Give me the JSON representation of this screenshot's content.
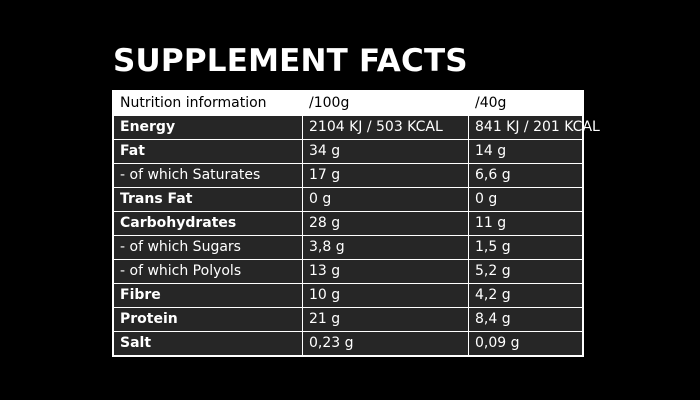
{
  "title": "SUPPLEMENT FACTS",
  "colors": {
    "background": "#000000",
    "header_row": "#ffffff",
    "body_rows": "#262626",
    "text": "#ffffff",
    "border": "#ffffff"
  },
  "table": {
    "header": {
      "label": "Nutrition information",
      "per_100g": "/100g",
      "per_serving": "/40g"
    },
    "rows": [
      {
        "label": "Energy",
        "per_100g": "2104 KJ / 503 KCAL",
        "per_serving": "841 KJ / 201 KCAL",
        "bold": true
      },
      {
        "label": "Fat",
        "per_100g": "34 g",
        "per_serving": "14 g",
        "bold": true
      },
      {
        "label": "- of which Saturates",
        "per_100g": "17 g",
        "per_serving": "6,6 g",
        "bold": false
      },
      {
        "label": "Trans Fat",
        "per_100g": "0 g",
        "per_serving": "0 g",
        "bold": true
      },
      {
        "label": "Carbohydrates",
        "per_100g": "28 g",
        "per_serving": "11 g",
        "bold": true
      },
      {
        "label": "- of which Sugars",
        "per_100g": "3,8 g",
        "per_serving": "1,5 g",
        "bold": false
      },
      {
        "label": "- of which Polyols",
        "per_100g": "13 g",
        "per_serving": "5,2 g",
        "bold": false
      },
      {
        "label": "Fibre",
        "per_100g": "10 g",
        "per_serving": "4,2 g",
        "bold": true
      },
      {
        "label": "Protein",
        "per_100g": "21 g",
        "per_serving": "8,4 g",
        "bold": true
      },
      {
        "label": "Salt",
        "per_100g": "0,23 g",
        "per_serving": "0,09 g",
        "bold": true
      }
    ]
  }
}
